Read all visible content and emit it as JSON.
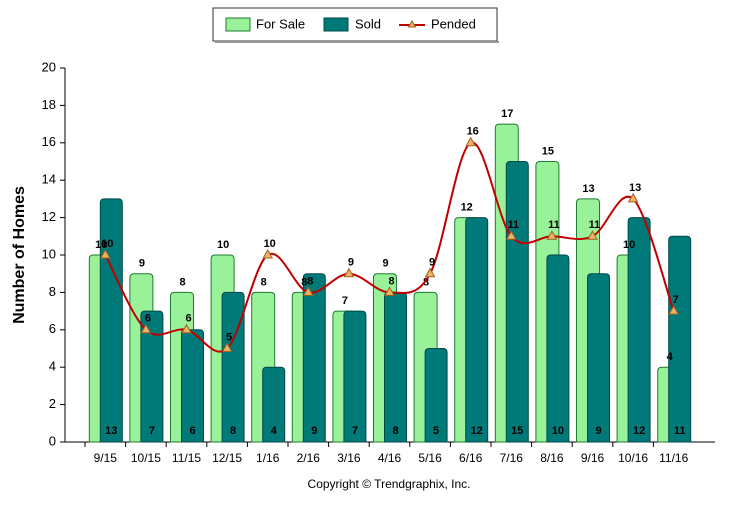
{
  "chart_data": {
    "type": "bar",
    "y_label": "Number of Homes",
    "footer": "Copyright © Trendgraphix, Inc.",
    "categories": [
      "9/15",
      "10/15",
      "11/15",
      "12/15",
      "1/16",
      "2/16",
      "3/16",
      "4/16",
      "5/16",
      "6/16",
      "7/16",
      "8/16",
      "9/16",
      "10/16",
      "11/16"
    ],
    "series": [
      {
        "name": "For Sale",
        "color": "#99f29a",
        "values": [
          10,
          9,
          8,
          10,
          8,
          8,
          7,
          9,
          8,
          12,
          17,
          15,
          13,
          10,
          4
        ]
      },
      {
        "name": "Sold",
        "color": "#007a78",
        "values": [
          13,
          7,
          6,
          8,
          4,
          9,
          7,
          8,
          5,
          12,
          15,
          10,
          9,
          12,
          11
        ]
      },
      {
        "name": "Pended",
        "type": "line",
        "color": "#c00000",
        "values": [
          10,
          6,
          6,
          5,
          10,
          8,
          9,
          8,
          9,
          16,
          11,
          11,
          11,
          13,
          7
        ]
      }
    ],
    "ylim": [
      0,
      20
    ],
    "yticks": [
      0,
      2,
      4,
      6,
      8,
      10,
      12,
      14,
      16,
      18,
      20
    ]
  }
}
